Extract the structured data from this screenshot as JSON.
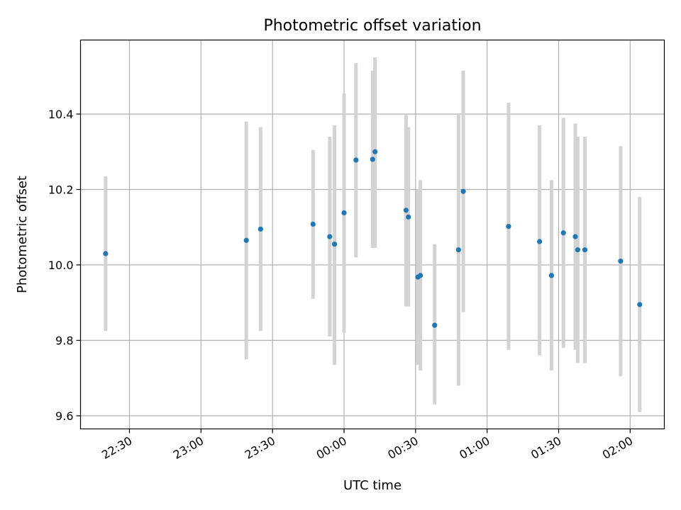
{
  "chart_data": {
    "type": "scatter",
    "title": "Photometric offset variation",
    "xlabel": "UTC time",
    "ylabel": "Photometric offset",
    "x_tick_labels": [
      "22:30",
      "23:00",
      "23:30",
      "00:00",
      "00:30",
      "01:00",
      "01:30",
      "02:00"
    ],
    "y_tick_labels": [
      "9.6",
      "9.8",
      "10.0",
      "10.2",
      "10.4"
    ],
    "grid": true,
    "colors": {
      "points": "#1f77b4",
      "error_bars": "#d3d3d3",
      "grid": "#b0b0b0"
    },
    "points": [
      {
        "x": "22:20",
        "y": 10.03,
        "yerr_low": 9.825,
        "yerr_high": 10.235
      },
      {
        "x": "23:19",
        "y": 10.065,
        "yerr_low": 9.75,
        "yerr_high": 10.38
      },
      {
        "x": "23:25",
        "y": 10.095,
        "yerr_low": 9.825,
        "yerr_high": 10.365
      },
      {
        "x": "23:47",
        "y": 10.108,
        "yerr_low": 9.91,
        "yerr_high": 10.305
      },
      {
        "x": "23:54",
        "y": 10.075,
        "yerr_low": 9.81,
        "yerr_high": 10.34
      },
      {
        "x": "23:56",
        "y": 10.055,
        "yerr_low": 9.735,
        "yerr_high": 10.37
      },
      {
        "x": "00:00",
        "y": 10.138,
        "yerr_low": 9.82,
        "yerr_high": 10.455
      },
      {
        "x": "00:05",
        "y": 10.278,
        "yerr_low": 10.02,
        "yerr_high": 10.535
      },
      {
        "x": "00:12",
        "y": 10.28,
        "yerr_low": 10.045,
        "yerr_high": 10.515
      },
      {
        "x": "00:13",
        "y": 10.3,
        "yerr_low": 10.045,
        "yerr_high": 10.55
      },
      {
        "x": "00:26",
        "y": 10.145,
        "yerr_low": 9.89,
        "yerr_high": 10.4
      },
      {
        "x": "00:27",
        "y": 10.127,
        "yerr_low": 9.89,
        "yerr_high": 10.365
      },
      {
        "x": "00:31",
        "y": 9.968,
        "yerr_low": 9.735,
        "yerr_high": 10.2
      },
      {
        "x": "00:32",
        "y": 9.972,
        "yerr_low": 9.72,
        "yerr_high": 10.225
      },
      {
        "x": "00:38",
        "y": 9.84,
        "yerr_low": 9.63,
        "yerr_high": 10.055
      },
      {
        "x": "00:48",
        "y": 10.04,
        "yerr_low": 9.68,
        "yerr_high": 10.4
      },
      {
        "x": "00:50",
        "y": 10.195,
        "yerr_low": 9.875,
        "yerr_high": 10.515
      },
      {
        "x": "01:09",
        "y": 10.102,
        "yerr_low": 9.775,
        "yerr_high": 10.43
      },
      {
        "x": "01:22",
        "y": 10.062,
        "yerr_low": 9.76,
        "yerr_high": 10.37
      },
      {
        "x": "01:27",
        "y": 9.972,
        "yerr_low": 9.72,
        "yerr_high": 10.225
      },
      {
        "x": "01:32",
        "y": 10.085,
        "yerr_low": 9.78,
        "yerr_high": 10.39
      },
      {
        "x": "01:37",
        "y": 10.075,
        "yerr_low": 9.775,
        "yerr_high": 10.375
      },
      {
        "x": "01:38",
        "y": 10.04,
        "yerr_low": 9.74,
        "yerr_high": 10.34
      },
      {
        "x": "01:41",
        "y": 10.04,
        "yerr_low": 9.74,
        "yerr_high": 10.34
      },
      {
        "x": "01:56",
        "y": 10.01,
        "yerr_low": 9.705,
        "yerr_high": 10.315
      },
      {
        "x": "02:04",
        "y": 9.895,
        "yerr_low": 9.61,
        "yerr_high": 10.18
      }
    ]
  }
}
